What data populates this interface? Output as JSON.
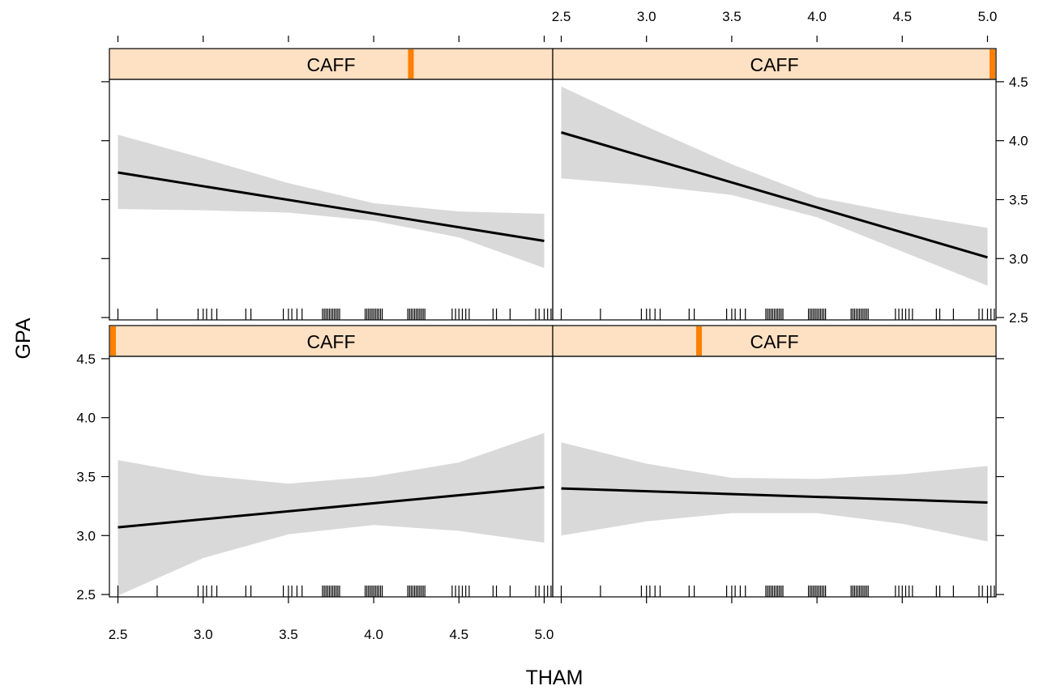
{
  "chart_data": {
    "type": "line",
    "layout": "2x2 trellis panels with confidence bands and rug marks",
    "xlabel": "THAM",
    "ylabel": "GPA",
    "xlim": [
      2.45,
      5.05
    ],
    "ylim": [
      2.48,
      4.52
    ],
    "x_ticks": [
      2.5,
      3.0,
      3.5,
      4.0,
      4.5,
      5.0
    ],
    "y_ticks": [
      2.5,
      3.0,
      3.5,
      4.0,
      4.5
    ],
    "grid": false,
    "strip_var": "CAFF",
    "colors": {
      "strip_bg": "#fee0c2",
      "strip_indicator": "#ff7f00",
      "band": "#d9d9d9",
      "line": "#000000"
    },
    "rug_x": [
      2.5,
      2.73,
      2.97,
      3.0,
      3.02,
      3.05,
      3.08,
      3.25,
      3.28,
      3.47,
      3.5,
      3.52,
      3.55,
      3.58,
      3.7,
      3.71,
      3.72,
      3.73,
      3.74,
      3.75,
      3.76,
      3.77,
      3.78,
      3.79,
      3.8,
      3.95,
      3.96,
      3.97,
      3.98,
      3.99,
      4.0,
      4.01,
      4.02,
      4.03,
      4.04,
      4.05,
      4.2,
      4.21,
      4.22,
      4.23,
      4.24,
      4.25,
      4.26,
      4.27,
      4.28,
      4.29,
      4.3,
      4.46,
      4.48,
      4.5,
      4.52,
      4.54,
      4.56,
      4.7,
      4.72,
      4.8,
      4.95,
      4.97,
      5.0,
      5.02,
      5.04
    ],
    "panels": [
      {
        "position": "top-left",
        "strip_label": "CAFF",
        "indicator": 0.68,
        "line": {
          "x": [
            2.5,
            5.0
          ],
          "y": [
            3.73,
            3.15
          ]
        },
        "band": {
          "x": [
            2.5,
            3.0,
            3.5,
            4.0,
            4.5,
            5.0
          ],
          "lower": [
            3.42,
            3.41,
            3.39,
            3.32,
            3.18,
            2.92
          ],
          "upper": [
            4.05,
            3.85,
            3.64,
            3.47,
            3.4,
            3.38
          ]
        }
      },
      {
        "position": "top-right",
        "strip_label": "CAFF",
        "indicator": 1.0,
        "line": {
          "x": [
            2.5,
            5.0
          ],
          "y": [
            4.07,
            3.01
          ]
        },
        "band": {
          "x": [
            2.5,
            3.0,
            3.5,
            4.0,
            4.5,
            5.0
          ],
          "lower": [
            3.68,
            3.62,
            3.54,
            3.35,
            3.06,
            2.77
          ],
          "upper": [
            4.46,
            4.12,
            3.8,
            3.52,
            3.38,
            3.26
          ]
        }
      },
      {
        "position": "bottom-left",
        "strip_label": "CAFF",
        "indicator": 0.0,
        "line": {
          "x": [
            2.5,
            5.0
          ],
          "y": [
            3.07,
            3.41
          ]
        },
        "band": {
          "x": [
            2.5,
            3.0,
            3.5,
            4.0,
            4.5,
            5.0
          ],
          "lower": [
            2.49,
            2.81,
            3.01,
            3.09,
            3.04,
            2.94
          ],
          "upper": [
            3.64,
            3.51,
            3.44,
            3.5,
            3.62,
            3.87
          ]
        }
      },
      {
        "position": "bottom-right",
        "strip_label": "CAFF",
        "indicator": 0.33,
        "line": {
          "x": [
            2.5,
            5.0
          ],
          "y": [
            3.4,
            3.28
          ]
        },
        "band": {
          "x": [
            2.5,
            3.0,
            3.5,
            4.0,
            4.5,
            5.0
          ],
          "lower": [
            3.0,
            3.12,
            3.19,
            3.19,
            3.1,
            2.95
          ],
          "upper": [
            3.79,
            3.61,
            3.49,
            3.48,
            3.52,
            3.59
          ]
        }
      }
    ]
  }
}
